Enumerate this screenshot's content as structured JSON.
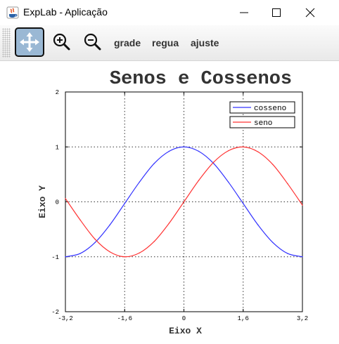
{
  "window": {
    "title": "ExpLab - Aplicação"
  },
  "toolbar": {
    "pan_icon": "move-arrows-icon",
    "zoom_in_icon": "zoom-in-icon",
    "zoom_out_icon": "zoom-out-icon",
    "grade_label": "grade",
    "regua_label": "regua",
    "ajuste_label": "ajuste"
  },
  "colors": {
    "active_tool": "#9ab8d4",
    "cosseno": "#3333ff",
    "seno": "#ff3333"
  },
  "chart_data": {
    "type": "line",
    "title": "Senos e Cossenos",
    "xlabel": "Eixo X",
    "ylabel": "Eixo Y",
    "xlim": [
      -3.2,
      3.2
    ],
    "ylim": [
      -2,
      2
    ],
    "xticks": [
      "-3,2",
      "-1,6",
      "0",
      "1,6",
      "3,2"
    ],
    "yticks": [
      "2",
      "1",
      "0",
      "-1",
      "-2"
    ],
    "grid": true,
    "legend_position": "top-right",
    "x": [
      -3.2,
      -2.8,
      -2.4,
      -2.0,
      -1.6,
      -1.2,
      -0.8,
      -0.4,
      0.0,
      0.4,
      0.8,
      1.2,
      1.6,
      2.0,
      2.4,
      2.8,
      3.2
    ],
    "series": [
      {
        "name": "cosseno",
        "color": "#3333ff",
        "values": [
          -1.0,
          -0.94,
          -0.74,
          -0.42,
          -0.03,
          0.36,
          0.7,
          0.92,
          1.0,
          0.92,
          0.7,
          0.36,
          -0.03,
          -0.42,
          -0.74,
          -0.94,
          -1.0
        ]
      },
      {
        "name": "seno",
        "color": "#ff3333",
        "values": [
          0.06,
          -0.33,
          -0.68,
          -0.91,
          -1.0,
          -0.93,
          -0.72,
          -0.39,
          0.0,
          0.39,
          0.72,
          0.93,
          1.0,
          0.91,
          0.68,
          0.33,
          -0.06
        ]
      }
    ]
  }
}
